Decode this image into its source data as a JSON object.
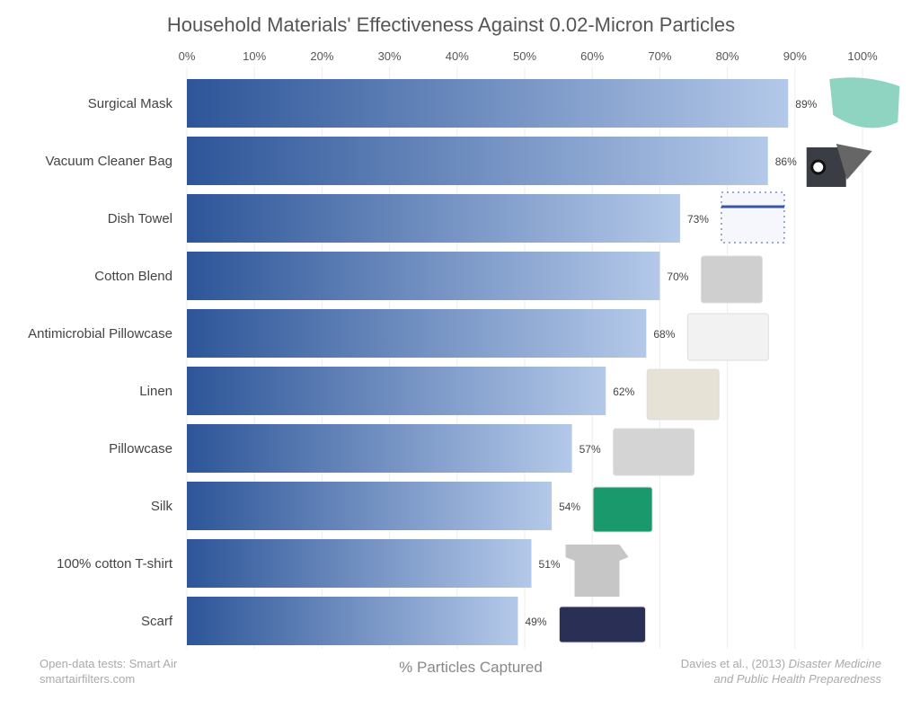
{
  "chart_data": {
    "type": "bar",
    "orientation": "horizontal",
    "title": "Household Materials' Effectiveness Against 0.02-Micron Particles",
    "xlabel": "% Particles Captured",
    "ylabel": "",
    "xlim": [
      0,
      100
    ],
    "x_ticks": [
      "0%",
      "10%",
      "20%",
      "30%",
      "40%",
      "50%",
      "60%",
      "70%",
      "80%",
      "90%",
      "100%"
    ],
    "axis_position": "top",
    "grid": true,
    "categories": [
      "Surgical Mask",
      "Vacuum Cleaner Bag",
      "Dish Towel",
      "Cotton Blend",
      "Antimicrobial Pillowcase",
      "Linen",
      "Pillowcase",
      "Silk",
      "100% cotton T-shirt",
      "Scarf"
    ],
    "values": [
      89,
      86,
      73,
      70,
      68,
      62,
      57,
      54,
      51,
      49
    ],
    "data_labels": [
      "89%",
      "86%",
      "73%",
      "70%",
      "68%",
      "62%",
      "57%",
      "54%",
      "51%",
      "49%"
    ],
    "icons": [
      "surgical-mask-image",
      "vacuum-bag-image",
      "dish-towel-image",
      "cotton-blend-image",
      "pillowcase-image",
      "linen-image",
      "pillowcase-image",
      "silk-image",
      "tshirt-image",
      "scarf-image"
    ],
    "icon_colors": [
      "#8fd3c1",
      "#3a3d44",
      "#3c56a6",
      "#cfcfcf",
      "#f2f2f2",
      "#e6e2d6",
      "#d4d4d4",
      "#1a9a6c",
      "#c6c6c6",
      "#2a2f55"
    ],
    "bar_gradient": [
      "#2d5598",
      "#b4c9e9"
    ]
  },
  "footer": {
    "source_left_1": "Open-data tests: Smart Air",
    "source_left_2": "smartairfilters.com",
    "citation_1": "Davies et al., (2013) ",
    "citation_1_italic": "Disaster Medicine",
    "citation_2": "and Public Health Preparedness"
  }
}
